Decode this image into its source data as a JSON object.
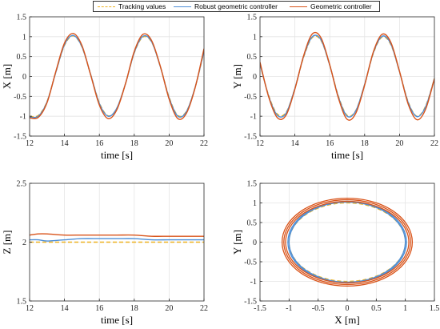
{
  "colors": {
    "tracking": "#EDB120",
    "robust": "#0072BD",
    "geometric": "#D95319",
    "grid": "#e4e4e4",
    "axis": "#262626"
  },
  "legend": [
    {
      "name": "Tracking values",
      "style": "dashed",
      "color": "#EDB120"
    },
    {
      "name": "Robust geometric controller",
      "style": "solid",
      "color": "#4d8ed6"
    },
    {
      "name": "Geometric controller",
      "style": "solid",
      "color": "#D95319"
    }
  ],
  "chart_data": [
    {
      "type": "line",
      "id": "x-vs-time",
      "xlabel": "time [s]",
      "ylabel": "X [m]",
      "xlim": [
        12,
        22
      ],
      "ylim": [
        -1.5,
        1.5
      ],
      "xticks": [
        12,
        14,
        16,
        18,
        20,
        22
      ],
      "yticks": [
        -1.5,
        -1,
        -0.5,
        0,
        0.5,
        1,
        1.5
      ],
      "xtick_labels": [
        "12",
        "14",
        "16",
        "18",
        "20",
        "22"
      ],
      "ytick_labels": [
        "-1.5",
        "-1",
        "-0.5",
        "0",
        "0.5",
        "1",
        "1.5"
      ],
      "grid": true,
      "series": [
        {
          "name": "Tracking values",
          "x": [
            12,
            12.5,
            13,
            13.5,
            14,
            14.5,
            15,
            15.5,
            16,
            16.5,
            17,
            17.5,
            18,
            18.5,
            19,
            19.5,
            20,
            20.5,
            21,
            21.5,
            22
          ],
          "y": [
            -1,
            -0.98,
            -0.63,
            0.1,
            0.78,
            1.02,
            0.74,
            0.05,
            -0.66,
            -0.99,
            -0.8,
            -0.18,
            0.59,
            0.99,
            0.86,
            0.24,
            -0.52,
            -0.98,
            -0.87,
            -0.26,
            0.62
          ]
        },
        {
          "name": "Robust geometric controller",
          "x": [
            12,
            12.5,
            13,
            13.5,
            14,
            14.5,
            15,
            15.5,
            16,
            16.5,
            17,
            17.5,
            18,
            18.5,
            19,
            19.5,
            20,
            20.5,
            21,
            21.5,
            22
          ],
          "y": [
            -1.02,
            -1.0,
            -0.64,
            0.1,
            0.8,
            1.03,
            0.75,
            0.05,
            -0.68,
            -1.0,
            -0.8,
            -0.18,
            0.6,
            1.01,
            0.87,
            0.24,
            -0.54,
            -1.0,
            -0.88,
            -0.26,
            0.64
          ]
        },
        {
          "name": "Geometric controller",
          "x": [
            12,
            12.5,
            13,
            13.5,
            14,
            14.5,
            15,
            15.5,
            16,
            16.5,
            17,
            17.5,
            18,
            18.5,
            19,
            19.5,
            20,
            20.5,
            21,
            21.5,
            22
          ],
          "y": [
            -1.04,
            -1.03,
            -0.66,
            0.12,
            0.84,
            1.08,
            0.78,
            0.04,
            -0.72,
            -1.06,
            -0.84,
            -0.18,
            0.63,
            1.06,
            0.9,
            0.25,
            -0.57,
            -1.06,
            -0.92,
            -0.27,
            0.7
          ]
        }
      ]
    },
    {
      "type": "line",
      "id": "y-vs-time",
      "xlabel": "time [s]",
      "ylabel": "Y [m]",
      "xlim": [
        12,
        22
      ],
      "ylim": [
        -1.5,
        1.5
      ],
      "xticks": [
        12,
        14,
        16,
        18,
        20,
        22
      ],
      "yticks": [
        -1.5,
        -1,
        -0.5,
        0,
        0.5,
        1,
        1.5
      ],
      "xtick_labels": [
        "12",
        "14",
        "16",
        "18",
        "20",
        "22"
      ],
      "ytick_labels": [
        "-1.5",
        "-1",
        "-0.5",
        "0",
        "0.5",
        "1",
        "1.5"
      ],
      "grid": true,
      "series": [
        {
          "name": "Tracking values",
          "x": [
            12,
            12.5,
            13,
            13.5,
            14,
            14.5,
            15,
            15.5,
            16,
            16.5,
            17,
            17.5,
            18,
            18.5,
            19,
            19.5,
            20,
            20.5,
            21,
            21.5,
            22
          ],
          "y": [
            0.3,
            -0.48,
            -0.95,
            -0.9,
            -0.3,
            0.48,
            0.98,
            0.9,
            0.28,
            -0.5,
            -0.98,
            -0.85,
            -0.2,
            0.58,
            0.99,
            0.8,
            0.12,
            -0.64,
            -1.0,
            -0.74,
            -0.05
          ]
        },
        {
          "name": "Robust geometric controller",
          "x": [
            12,
            12.5,
            13,
            13.5,
            14,
            14.5,
            15,
            15.5,
            16,
            16.5,
            17,
            17.5,
            18,
            18.5,
            19,
            19.5,
            20,
            20.5,
            21,
            21.5,
            22
          ],
          "y": [
            0.32,
            -0.5,
            -0.98,
            -0.92,
            -0.3,
            0.5,
            1.0,
            0.92,
            0.28,
            -0.52,
            -1.0,
            -0.86,
            -0.2,
            0.6,
            1.01,
            0.82,
            0.12,
            -0.66,
            -1.01,
            -0.76,
            -0.06
          ]
        },
        {
          "name": "Geometric controller",
          "x": [
            12,
            12.5,
            13,
            13.5,
            14,
            14.5,
            15,
            15.5,
            16,
            16.5,
            17,
            17.5,
            18,
            18.5,
            19,
            19.5,
            20,
            20.5,
            21,
            21.5,
            22
          ],
          "y": [
            0.36,
            -0.52,
            -1.04,
            -0.97,
            -0.32,
            0.52,
            1.07,
            0.97,
            0.29,
            -0.55,
            -1.08,
            -0.92,
            -0.22,
            0.62,
            1.06,
            0.86,
            0.13,
            -0.7,
            -1.09,
            -0.82,
            -0.06
          ]
        }
      ]
    },
    {
      "type": "line",
      "id": "z-vs-time",
      "xlabel": "time [s]",
      "ylabel": "Z [m]",
      "xlim": [
        12,
        22
      ],
      "ylim": [
        1.5,
        2.5
      ],
      "xticks": [
        12,
        14,
        16,
        18,
        20,
        22
      ],
      "yticks": [
        1.5,
        2,
        2.5
      ],
      "xtick_labels": [
        "12",
        "14",
        "16",
        "18",
        "20",
        "22"
      ],
      "ytick_labels": [
        "1.5",
        "2",
        "2.5"
      ],
      "grid": true,
      "series": [
        {
          "name": "Tracking values",
          "x": [
            12,
            22
          ],
          "y": [
            2.0,
            2.0
          ]
        },
        {
          "name": "Robust geometric controller",
          "x": [
            12,
            12.5,
            13,
            14,
            15,
            16,
            17,
            18,
            19,
            20,
            21,
            22
          ],
          "y": [
            2.02,
            2.02,
            2.01,
            2.02,
            2.03,
            2.03,
            2.03,
            2.03,
            2.02,
            2.02,
            2.02,
            2.02
          ]
        },
        {
          "name": "Geometric controller",
          "x": [
            12,
            12.5,
            13,
            14,
            15,
            16,
            17,
            18,
            19,
            20,
            21,
            22
          ],
          "y": [
            2.06,
            2.07,
            2.07,
            2.06,
            2.06,
            2.06,
            2.06,
            2.06,
            2.05,
            2.05,
            2.05,
            2.05
          ]
        }
      ]
    },
    {
      "type": "line",
      "id": "y-vs-x",
      "xlabel": "X [m]",
      "ylabel": "Y [m]",
      "xlim": [
        -1.5,
        1.5
      ],
      "ylim": [
        -1.5,
        1.5
      ],
      "xticks": [
        -1.5,
        -1,
        -0.5,
        0,
        0.5,
        1,
        1.5
      ],
      "yticks": [
        -1.5,
        -1,
        -0.5,
        0,
        0.5,
        1,
        1.5
      ],
      "xtick_labels": [
        "-1.5",
        "-1",
        "-0.5",
        "0",
        "0.5",
        "1",
        "1.5"
      ],
      "ytick_labels": [
        "-1.5",
        "-1",
        "-0.5",
        "0",
        "0.5",
        "1",
        "1.5"
      ],
      "grid": true,
      "series": [
        {
          "name": "Tracking values",
          "shape": "ellipse",
          "cx": 0.0,
          "cy": 0.0,
          "rx": [
            1.0
          ],
          "ry": [
            1.0
          ]
        },
        {
          "name": "Robust geometric controller",
          "shape": "ellipse",
          "cx": 0.0,
          "cy": 0.0,
          "rx": [
            1.0,
            1.02
          ],
          "ry": [
            1.02,
            1.04
          ]
        },
        {
          "name": "Geometric controller",
          "shape": "ellipse",
          "cx": 0.0,
          "cy": 0.0,
          "rx": [
            1.06,
            1.09,
            1.12
          ],
          "ry": [
            1.04,
            1.08,
            1.12
          ]
        }
      ]
    }
  ]
}
